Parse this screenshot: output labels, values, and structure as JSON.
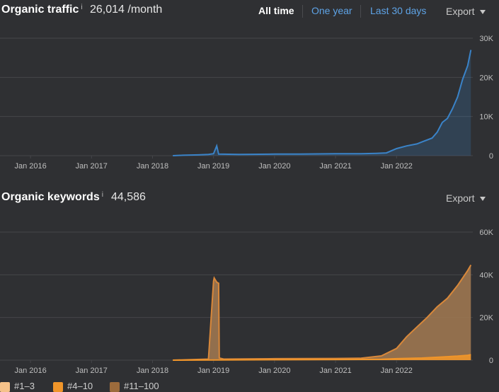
{
  "traffic": {
    "title": "Organic traffic",
    "info_mark": "i",
    "metric": "26,014 /month",
    "tabs": [
      {
        "label": "All time",
        "active": true
      },
      {
        "label": "One year",
        "active": false
      },
      {
        "label": "Last 30 days",
        "active": false
      }
    ],
    "export_label": "Export"
  },
  "keywords": {
    "title": "Organic keywords",
    "info_mark": "i",
    "metric": "44,586",
    "export_label": "Export"
  },
  "legend": [
    {
      "label": "#1–3",
      "color": "#f6c28a"
    },
    {
      "label": "#4–10",
      "color": "#f0952a"
    },
    {
      "label": "#11–100",
      "color": "#9c6b3c"
    }
  ],
  "colors": {
    "background": "#2f3033",
    "traffic_line": "#3a83c8",
    "keywords_line": "#d9883a",
    "keywords_fill": "#a37a52",
    "top_line": "#f0952a",
    "grid": "#45464a",
    "axis_text": "#bfbfbf"
  },
  "chart_data": [
    {
      "type": "area",
      "title": "Organic traffic",
      "x_ticks": [
        "Jan 2016",
        "Jan 2017",
        "Jan 2018",
        "Jan 2019",
        "Jan 2020",
        "Jan 2021",
        "Jan 2022"
      ],
      "y_ticks": [
        "30K",
        "20K",
        "10K",
        "0"
      ],
      "ylim": [
        0,
        30000
      ],
      "xlim": [
        "2015-07",
        "2023-04"
      ],
      "grid": true,
      "series": [
        {
          "x": [
            "2018-05",
            "2018-07",
            "2018-10",
            "2018-12",
            "2019-01",
            "2019-01-20",
            "2019-02",
            "2019-06",
            "2020-01",
            "2020-06",
            "2021-01",
            "2021-06",
            "2021-09",
            "2021-11",
            "2022-01",
            "2022-03",
            "2022-05",
            "2022-06",
            "2022-08",
            "2022-09",
            "2022-10",
            "2022-11",
            "2022-12",
            "2023-01",
            "2023-02",
            "2023-03",
            "2023-03-20"
          ],
          "values": [
            0,
            100,
            200,
            300,
            500,
            2500,
            400,
            300,
            400,
            400,
            500,
            500,
            600,
            700,
            1800,
            2500,
            3000,
            3500,
            4500,
            6000,
            8500,
            9500,
            12000,
            15000,
            19500,
            23000,
            27000
          ]
        }
      ]
    },
    {
      "type": "area",
      "title": "Organic keywords",
      "x_ticks": [
        "Jan 2016",
        "Jan 2017",
        "Jan 2018",
        "Jan 2019",
        "Jan 2020",
        "Jan 2021",
        "Jan 2022"
      ],
      "y_ticks": [
        "60K",
        "40K",
        "20K",
        "0"
      ],
      "ylim": [
        0,
        60000
      ],
      "xlim": [
        "2015-07",
        "2023-04"
      ],
      "grid": true,
      "series": [
        {
          "name": "#11–100",
          "x": [
            "2018-05",
            "2018-12",
            "2019-01-01",
            "2019-01-05",
            "2019-01-20",
            "2019-02-01",
            "2019-02-05",
            "2019-03",
            "2020-01",
            "2021-01",
            "2021-06",
            "2021-10",
            "2022-01",
            "2022-03",
            "2022-05",
            "2022-07",
            "2022-09",
            "2022-11",
            "2023-01",
            "2023-03",
            "2023-03-20"
          ],
          "values": [
            0,
            500,
            37000,
            38500,
            36500,
            36000,
            1000,
            500,
            700,
            800,
            900,
            2000,
            5500,
            11000,
            15500,
            20000,
            25000,
            29000,
            35000,
            42000,
            44586
          ]
        },
        {
          "name": "#4–10",
          "x": [
            "2018-05",
            "2020-01",
            "2021-01",
            "2021-10",
            "2022-01",
            "2022-06",
            "2022-10",
            "2023-01",
            "2023-03",
            "2023-03-20"
          ],
          "values": [
            0,
            200,
            300,
            400,
            700,
            1000,
            1500,
            1900,
            2300,
            2600
          ]
        }
      ]
    }
  ]
}
